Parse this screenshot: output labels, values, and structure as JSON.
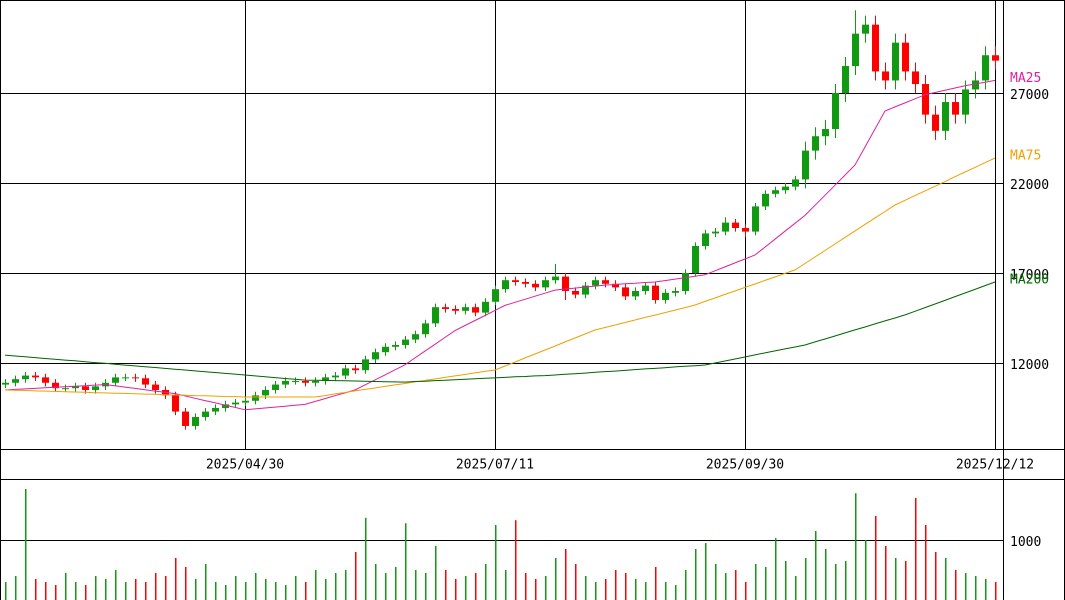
{
  "chart_data": {
    "type": "candlestick",
    "categories": [
      null,
      null,
      null,
      null,
      null,
      null,
      null,
      null,
      null,
      null,
      null,
      null,
      null,
      null,
      null,
      null,
      null,
      null,
      null,
      null,
      null,
      null,
      null,
      null,
      "2025/04/30",
      null,
      null,
      null,
      null,
      null,
      null,
      null,
      null,
      null,
      null,
      null,
      null,
      null,
      null,
      null,
      null,
      null,
      null,
      null,
      null,
      null,
      null,
      null,
      null,
      "2025/07/11",
      null,
      null,
      null,
      null,
      null,
      null,
      null,
      null,
      null,
      null,
      null,
      null,
      null,
      null,
      null,
      null,
      null,
      null,
      null,
      null,
      null,
      null,
      null,
      null,
      "2025/09/30",
      null,
      null,
      null,
      null,
      null,
      null,
      null,
      null,
      null,
      null,
      null,
      null,
      null,
      null,
      null,
      null,
      null,
      null,
      null,
      null,
      null,
      null,
      null,
      null,
      "2025/12/12"
    ],
    "open": [
      10800,
      10900,
      11100,
      11300,
      11200,
      10900,
      10600,
      10600,
      10700,
      10500,
      10700,
      10900,
      11200,
      11200,
      11150,
      10800,
      10500,
      10200,
      9300,
      8500,
      9000,
      9300,
      9500,
      9700,
      9800,
      9900,
      10200,
      10500,
      10800,
      11000,
      11000,
      10900,
      11000,
      11200,
      11300,
      11700,
      11600,
      12200,
      12600,
      12900,
      13000,
      13300,
      13600,
      14200,
      15100,
      15000,
      14900,
      15100,
      14800,
      15400,
      16100,
      16600,
      16500,
      16400,
      16200,
      16600,
      16800,
      16000,
      15800,
      16300,
      16600,
      16400,
      16200,
      15700,
      16000,
      16300,
      15500,
      15900,
      16000,
      17000,
      18500,
      19200,
      19300,
      19800,
      19500,
      19300,
      20700,
      21400,
      21600,
      21800,
      22200,
      23800,
      24600,
      25000,
      27000,
      28500,
      30300,
      30800,
      28200,
      27700,
      29800,
      28200,
      27500,
      25800,
      24900,
      26500,
      25800,
      27200,
      27700,
      29100
    ],
    "high": [
      11100,
      11300,
      11500,
      11500,
      11400,
      11100,
      10800,
      10900,
      10900,
      10900,
      11100,
      11400,
      11400,
      11400,
      11350,
      11000,
      10700,
      10400,
      9500,
      9200,
      9500,
      9700,
      9900,
      10000,
      10100,
      10400,
      10700,
      11000,
      11200,
      11200,
      11200,
      11200,
      11400,
      11500,
      11900,
      11900,
      12400,
      12800,
      13100,
      13200,
      13500,
      13800,
      14400,
      15300,
      15300,
      15200,
      15300,
      15300,
      15600,
      16300,
      16800,
      16800,
      16700,
      16600,
      16800,
      17500,
      17000,
      16200,
      16500,
      16800,
      16800,
      16600,
      16400,
      16200,
      16500,
      16500,
      16100,
      16200,
      17200,
      18700,
      19400,
      19500,
      20100,
      20000,
      19700,
      20900,
      21600,
      21800,
      22000,
      22400,
      24300,
      25100,
      25500,
      27500,
      29000,
      31600,
      31300,
      31300,
      28700,
      30300,
      30300,
      28700,
      28000,
      26300,
      27000,
      27000,
      27700,
      28200,
      29600,
      29600
    ],
    "low": [
      10600,
      10700,
      10900,
      11000,
      10700,
      10400,
      10400,
      10400,
      10300,
      10300,
      10500,
      10700,
      11000,
      10950,
      10600,
      10300,
      10000,
      9100,
      8300,
      8300,
      8800,
      9100,
      9300,
      9500,
      9600,
      9700,
      10000,
      10300,
      10600,
      10800,
      10700,
      10700,
      10800,
      11000,
      11100,
      11400,
      11400,
      12000,
      12400,
      12700,
      12800,
      13100,
      13400,
      14000,
      14800,
      14700,
      14700,
      14600,
      14600,
      15200,
      15900,
      16300,
      16200,
      16000,
      16000,
      16400,
      15500,
      15600,
      15600,
      16100,
      16200,
      16000,
      15500,
      15500,
      15800,
      15300,
      15300,
      15700,
      15800,
      16800,
      18300,
      19000,
      19100,
      19300,
      19000,
      19100,
      20500,
      21200,
      21400,
      21600,
      21700,
      23300,
      24100,
      24500,
      26500,
      28000,
      29800,
      27700,
      27200,
      27200,
      27700,
      27000,
      25300,
      24400,
      24400,
      25300,
      25300,
      26700,
      27200,
      28300
    ],
    "close": [
      10900,
      11100,
      11300,
      11200,
      10900,
      10600,
      10600,
      10700,
      10500,
      10700,
      10900,
      11200,
      11200,
      11150,
      10800,
      10500,
      10200,
      9300,
      8500,
      9000,
      9300,
      9500,
      9700,
      9800,
      9900,
      10200,
      10500,
      10800,
      11000,
      11000,
      10900,
      11000,
      11200,
      11300,
      11700,
      11600,
      12200,
      12600,
      12900,
      13000,
      13300,
      13600,
      14200,
      15100,
      15000,
      14900,
      15100,
      14800,
      15400,
      16100,
      16600,
      16500,
      16400,
      16200,
      16600,
      16800,
      16000,
      15800,
      16300,
      16600,
      16400,
      16200,
      15700,
      16000,
      16300,
      15500,
      15900,
      16000,
      17000,
      18500,
      19200,
      19300,
      19800,
      19500,
      19300,
      20700,
      21400,
      21600,
      21800,
      22200,
      23800,
      24600,
      25000,
      27000,
      28500,
      30300,
      30800,
      28200,
      27700,
      29800,
      28200,
      27500,
      25800,
      24900,
      26500,
      25800,
      27200,
      27700,
      29100,
      28800
    ],
    "up_color": "#119911",
    "down_color": "#ff0000",
    "ylim": [
      7220,
      32170
    ],
    "yticks": [
      12000,
      17000,
      22000,
      27000
    ],
    "series": [
      {
        "name": "MA25",
        "color": "#e020a0",
        "values": [
          10500,
          10530,
          10560,
          10590,
          10620,
          10650,
          10680,
          10710,
          10740,
          10770,
          10800,
          10730,
          10660,
          10590,
          10510,
          10440,
          10370,
          10300,
          10170,
          10040,
          9910,
          9790,
          9660,
          9530,
          9400,
          9450,
          9500,
          9550,
          9600,
          9650,
          9700,
          9860,
          10020,
          10180,
          10340,
          10500,
          10780,
          11060,
          11340,
          11620,
          11900,
          12280,
          12660,
          13040,
          13420,
          13800,
          14080,
          14360,
          14640,
          14920,
          15200,
          15370,
          15540,
          15710,
          15880,
          16050,
          16110,
          16160,
          16220,
          16270,
          16330,
          16360,
          16400,
          16430,
          16470,
          16500,
          16580,
          16660,
          16740,
          16820,
          16900,
          17120,
          17340,
          17560,
          17780,
          18000,
          18440,
          18880,
          19320,
          19760,
          20200,
          20760,
          21320,
          21880,
          22440,
          23000,
          24000,
          25000,
          26000,
          26230,
          26450,
          26680,
          26900,
          27030,
          27150,
          27280,
          27400,
          27500,
          27600,
          27700
        ]
      },
      {
        "name": "MA75",
        "color": "#f0a000",
        "values": [
          10500,
          10480,
          10470,
          10450,
          10440,
          10420,
          10400,
          10390,
          10370,
          10350,
          10340,
          10320,
          10310,
          10290,
          10270,
          10260,
          10240,
          10220,
          10210,
          10190,
          10180,
          10160,
          10140,
          10130,
          10110,
          10110,
          10110,
          10110,
          10110,
          10110,
          10110,
          10110,
          10190,
          10280,
          10360,
          10450,
          10530,
          10610,
          10700,
          10780,
          10860,
          10950,
          11030,
          11110,
          11200,
          11280,
          11360,
          11450,
          11530,
          11610,
          11830,
          12050,
          12280,
          12500,
          12720,
          12940,
          13170,
          13390,
          13610,
          13830,
          13970,
          14110,
          14250,
          14390,
          14530,
          14660,
          14800,
          14940,
          15080,
          15220,
          15420,
          15610,
          15810,
          16000,
          16200,
          16390,
          16590,
          16780,
          16980,
          17170,
          17530,
          17890,
          18250,
          18610,
          18980,
          19340,
          19700,
          20060,
          20420,
          20780,
          21040,
          21300,
          21560,
          21820,
          22080,
          22350,
          22610,
          22870,
          23130,
          23390
        ]
      },
      {
        "name": "MA200",
        "color": "#006400",
        "values": [
          12440,
          12390,
          12350,
          12300,
          12250,
          12210,
          12160,
          12120,
          12070,
          12020,
          11980,
          11930,
          11880,
          11840,
          11790,
          11750,
          11700,
          11650,
          11610,
          11560,
          11510,
          11470,
          11420,
          11380,
          11330,
          11280,
          11240,
          11190,
          11140,
          11100,
          11050,
          11040,
          11030,
          11020,
          11010,
          11000,
          10980,
          10970,
          10960,
          10950,
          10940,
          10970,
          10990,
          11020,
          11040,
          11070,
          11100,
          11120,
          11150,
          11170,
          11200,
          11230,
          11250,
          11280,
          11300,
          11330,
          11370,
          11400,
          11440,
          11480,
          11520,
          11550,
          11590,
          11630,
          11670,
          11700,
          11740,
          11780,
          11820,
          11850,
          11890,
          12000,
          12110,
          12220,
          12330,
          12450,
          12560,
          12670,
          12780,
          12890,
          13000,
          13170,
          13330,
          13500,
          13670,
          13840,
          14000,
          14170,
          14340,
          14500,
          14670,
          14870,
          15080,
          15280,
          15480,
          15690,
          15890,
          16090,
          16300,
          16500
        ]
      }
    ],
    "volume": {
      "ylim": [
        0,
        2000
      ],
      "yticks": [
        1000
      ],
      "values": [
        300,
        400,
        1850,
        350,
        300,
        250,
        450,
        300,
        250,
        400,
        350,
        500,
        300,
        350,
        300,
        450,
        400,
        700,
        550,
        350,
        600,
        300,
        250,
        400,
        300,
        450,
        350,
        300,
        250,
        400,
        300,
        500,
        350,
        450,
        500,
        800,
        1370,
        600,
        450,
        550,
        1280,
        500,
        450,
        900,
        500,
        350,
        400,
        450,
        600,
        1250,
        500,
        1330,
        450,
        350,
        400,
        700,
        850,
        600,
        400,
        300,
        350,
        500,
        450,
        350,
        300,
        550,
        300,
        250,
        500,
        850,
        950,
        600,
        450,
        500,
        300,
        600,
        550,
        1030,
        650,
        400,
        700,
        1150,
        850,
        600,
        650,
        1780,
        1000,
        1400,
        900,
        700,
        650,
        1700,
        1250,
        800,
        700,
        500,
        450,
        400,
        350,
        300
      ]
    }
  }
}
